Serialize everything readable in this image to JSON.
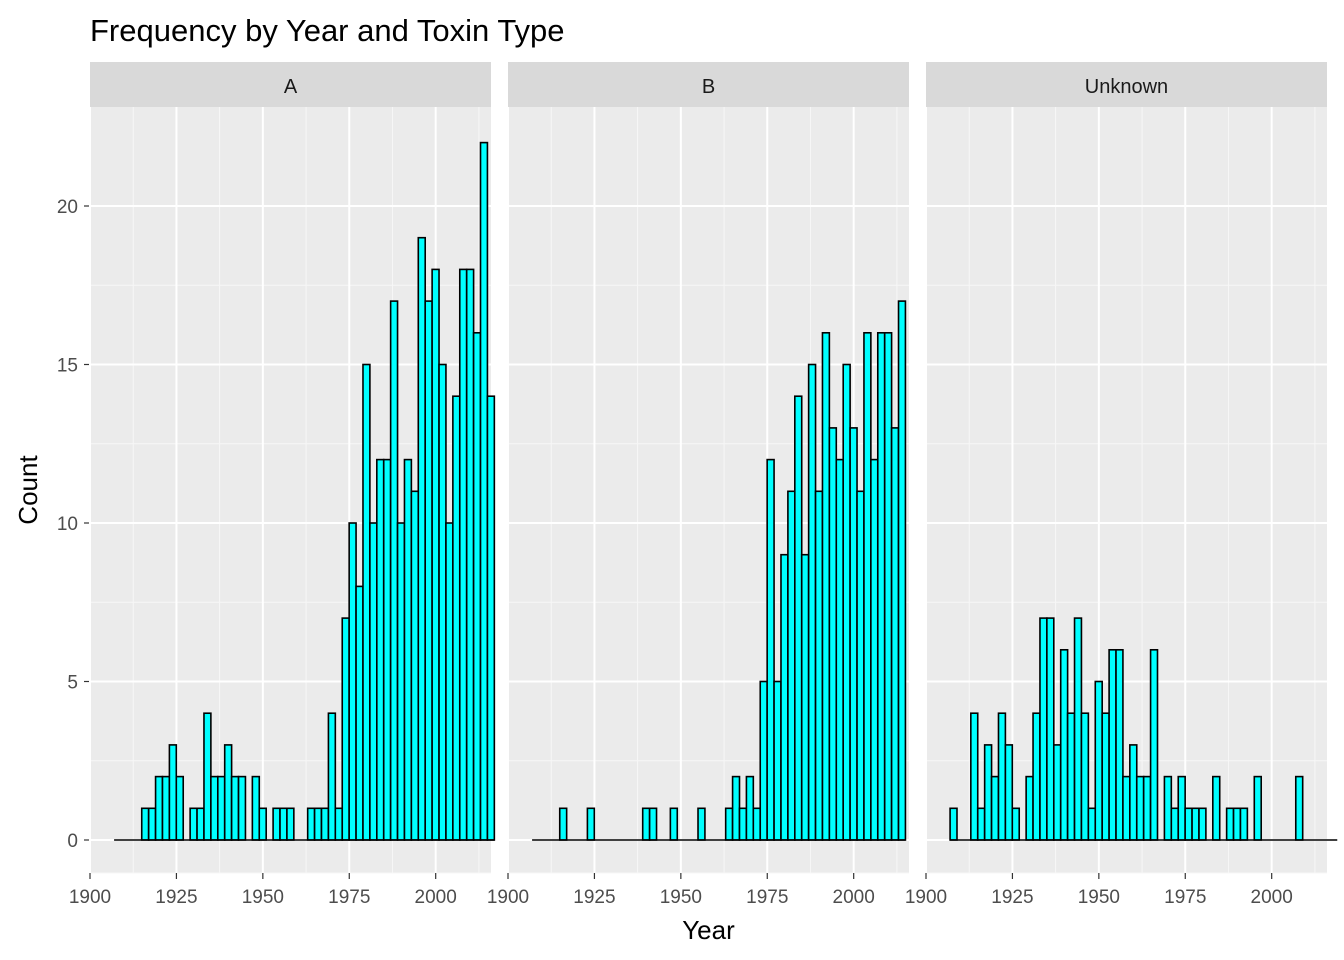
{
  "chart_data": {
    "type": "bar",
    "title": "Frequency by Year and Toxin Type",
    "xlabel": "Year",
    "ylabel": "Count",
    "xlim": [
      1900,
      2016
    ],
    "ylim": [
      0,
      22
    ],
    "x_ticks": [
      1900,
      1925,
      1950,
      1975,
      2000
    ],
    "y_ticks": [
      0,
      5,
      10,
      15,
      20
    ],
    "bin_width": 2,
    "grid": true,
    "colors": {
      "fill": "#00ffff",
      "outline": "#000000",
      "panel": "#ebebeb",
      "strip": "#d9d9d9",
      "grid": "#ffffff"
    },
    "facets": [
      {
        "label": "A",
        "x_start": 1905,
        "values": [
          0,
          0,
          0,
          0,
          1,
          1,
          2,
          2,
          3,
          2,
          0,
          1,
          1,
          4,
          2,
          2,
          3,
          2,
          2,
          0,
          2,
          1,
          0,
          1,
          1,
          1,
          0,
          0,
          1,
          1,
          1,
          4,
          1,
          7,
          10,
          8,
          15,
          10,
          12,
          12,
          17,
          10,
          12,
          11,
          19,
          17,
          18,
          15,
          10,
          14,
          18,
          18,
          16,
          22,
          14
        ]
      },
      {
        "label": "B",
        "x_start": 1905,
        "values": [
          0,
          0,
          0,
          0,
          1,
          0,
          0,
          0,
          1,
          0,
          0,
          0,
          0,
          0,
          0,
          0,
          1,
          1,
          0,
          0,
          1,
          0,
          0,
          0,
          1,
          0,
          0,
          0,
          1,
          2,
          1,
          2,
          1,
          5,
          12,
          5,
          9,
          11,
          14,
          9,
          15,
          11,
          16,
          13,
          12,
          15,
          13,
          11,
          16,
          12,
          16,
          16,
          13,
          17
        ]
      },
      {
        "label": "Unknown",
        "x_start": 1905,
        "values": [
          1,
          0,
          0,
          4,
          1,
          3,
          2,
          4,
          3,
          1,
          0,
          2,
          4,
          7,
          7,
          3,
          6,
          4,
          7,
          4,
          1,
          5,
          4,
          6,
          6,
          2,
          3,
          2,
          2,
          6,
          0,
          2,
          1,
          2,
          1,
          1,
          1,
          0,
          2,
          0,
          1,
          1,
          1,
          0,
          2,
          0,
          0,
          0,
          0,
          0,
          2,
          0,
          0,
          0,
          0,
          0
        ]
      }
    ]
  }
}
